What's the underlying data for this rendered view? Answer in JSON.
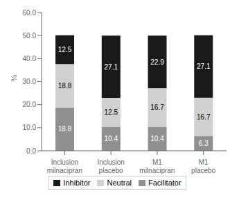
{
  "chart_data": {
    "type": "bar",
    "stacked": true,
    "data_labels": true,
    "grid": false,
    "legend": "bottom",
    "ylabel": "%",
    "categories": [
      "Inclusion\nmilnacipran",
      "Inclusion\nplacebo",
      "M1\nmilnacipran",
      "M1\nplacebo"
    ],
    "series": [
      {
        "name": "Facilitator",
        "color": "#909090",
        "values": [
          18.8,
          10.4,
          10.4,
          6.3
        ]
      },
      {
        "name": "Neutral",
        "color": "#d0d0d0",
        "values": [
          18.8,
          12.5,
          16.7,
          16.7
        ]
      },
      {
        "name": "Inhibitor",
        "color": "#1a1a1a",
        "values": [
          12.5,
          27.1,
          22.9,
          27.1
        ]
      }
    ],
    "ylim": [
      0,
      60
    ],
    "yticks": [
      {
        "value": 0,
        "label": "0.0"
      },
      {
        "value": 10,
        "label": "10.0"
      },
      {
        "value": 20,
        "label": "20.0"
      },
      {
        "value": 30,
        "label": "30.0"
      },
      {
        "value": 40,
        "label": "40.0"
      },
      {
        "value": 50,
        "label": "50.0"
      },
      {
        "value": 60,
        "label": "60.0"
      }
    ]
  }
}
